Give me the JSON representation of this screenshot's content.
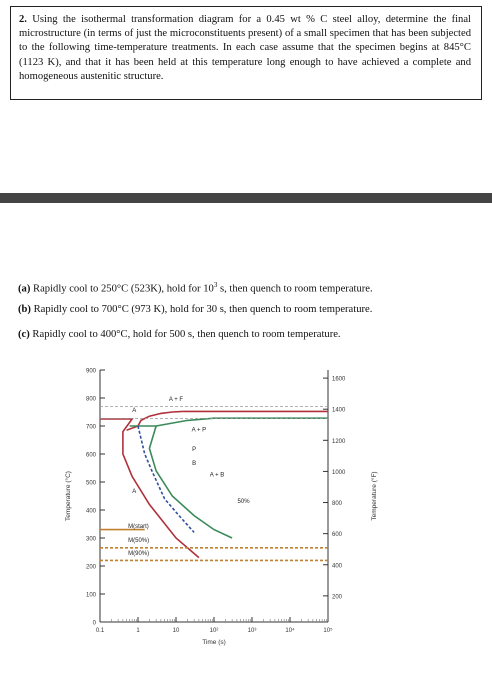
{
  "question": {
    "number": "2.",
    "text": "Using the isothermal transformation diagram for a 0.45 wt % C steel alloy, determine the final microstructure (in terms of just the microconstituents present) of a small specimen that has been subjected to the following time-temperature treatments. In each case assume that the specimen begins at 845°C (1123 K), and that it has been held at this temperature long enough to have achieved a complete and homogeneous austenitic structure."
  },
  "parts": [
    {
      "label": "(a)",
      "pre": "Rapidly cool to 250°C (523K), hold for 10",
      "sup": "3",
      "post": " s, then quench to room temperature."
    },
    {
      "label": "(b)",
      "pre": "Rapidly cool to 700°C (973 K), hold for 30 s, then quench to room temperature.",
      "sup": "",
      "post": ""
    },
    {
      "label": "(c)",
      "pre": "Rapidly cool to 400°C, hold for 500 s, then quench to room temperature.",
      "sup": "",
      "post": ""
    }
  ],
  "chart_data": {
    "type": "line",
    "xlabel": "Time (s)",
    "ylabel": "Temperature (°C)",
    "ylabel_right": "Temperature (°F)",
    "x_scale": "log",
    "xlim": [
      0.1,
      100000
    ],
    "ylim": [
      0,
      900
    ],
    "x_ticks": [
      "0.1",
      "1",
      "10",
      "10²",
      "10³",
      "10⁴",
      "10⁵"
    ],
    "y_ticks": [
      "0",
      "100",
      "200",
      "300",
      "400",
      "500",
      "600",
      "700",
      "800",
      "900"
    ],
    "y_ticks_right": [
      "200",
      "400",
      "600",
      "800",
      "1000",
      "1200",
      "1400",
      "1600"
    ],
    "annotations": [
      "A + F",
      "A",
      "A + P",
      "P",
      "B",
      "A + B",
      "50%",
      "A",
      "M(start)",
      "M(50%)",
      "M(90%)"
    ],
    "series": [
      {
        "color": "#b0303a",
        "x": [
          0.1,
          0.7,
          0.4,
          0.4,
          0.7,
          2,
          10,
          40
        ],
        "y": [
          725,
          725,
          680,
          600,
          520,
          420,
          300,
          230
        ]
      },
      {
        "color": "#b0303a",
        "x": [
          0.5,
          1.0,
          1.2,
          2,
          4,
          8,
          15
        ],
        "y": [
          685,
          700,
          720,
          735,
          745,
          750,
          752
        ]
      },
      {
        "color": "#b0303a",
        "x": [
          15,
          100000
        ],
        "y": [
          752,
          752
        ]
      },
      {
        "color": "#3a8a5a",
        "x": [
          0.6,
          3,
          2,
          3,
          8,
          30,
          100,
          300
        ],
        "y": [
          700,
          700,
          620,
          540,
          450,
          380,
          330,
          300
        ]
      },
      {
        "color": "#3a8a5a",
        "x": [
          3,
          20,
          100,
          10000,
          100000
        ],
        "y": [
          700,
          720,
          728,
          728,
          728
        ]
      },
      {
        "color": "#3050a0",
        "x": [
          1,
          1.5,
          2.5,
          5,
          12,
          30
        ],
        "y": [
          700,
          600,
          530,
          440,
          380,
          320
        ],
        "dashed": true
      },
      {
        "color": "#c08030",
        "x": [
          0.1,
          1.5
        ],
        "y": [
          330,
          330
        ]
      },
      {
        "color": "#c08030",
        "x": [
          0.1,
          100000
        ],
        "y": [
          265,
          265
        ],
        "dashed": true
      },
      {
        "color": "#c08030",
        "x": [
          0.1,
          100000
        ],
        "y": [
          220,
          220
        ],
        "dashed": true
      },
      {
        "color": "#999999",
        "x": [
          0.1,
          100000
        ],
        "y": [
          727,
          727
        ],
        "dashed": true
      },
      {
        "color": "#999999",
        "x": [
          0.1,
          100000
        ],
        "y": [
          770,
          770
        ],
        "dashed": true
      }
    ]
  }
}
